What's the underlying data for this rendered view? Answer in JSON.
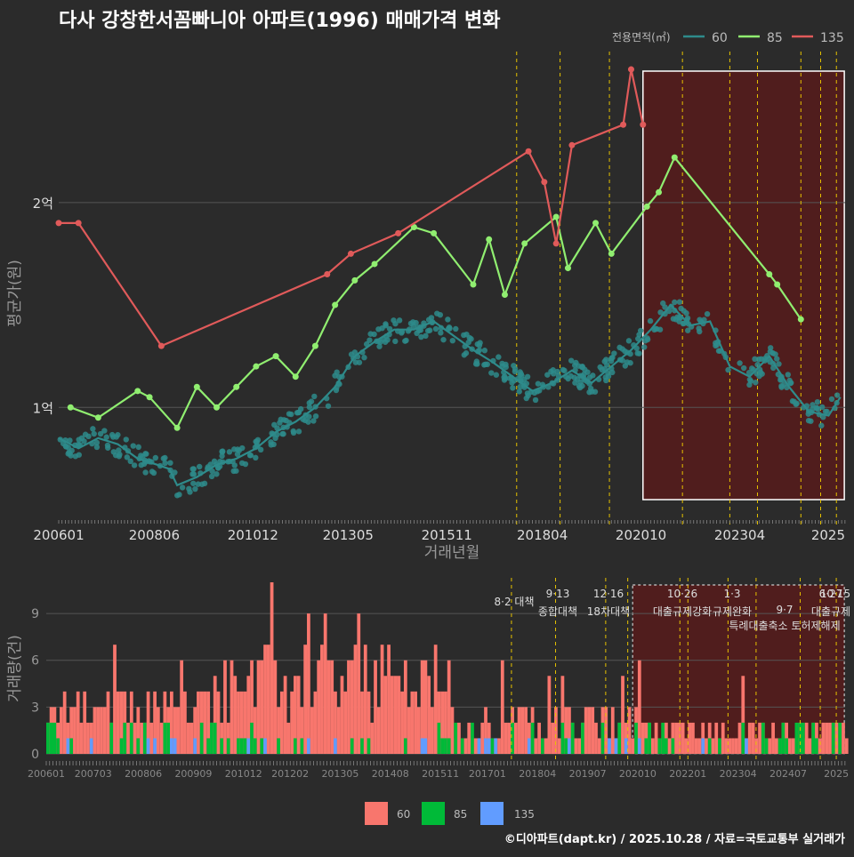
{
  "title": "다사 강창한서꼼빠니아 아파트(1996) 매매가격 변화",
  "source": "©디아파트(dapt.kr) / 2025.10.28 / 자료=국토교통부 실거래가",
  "colors": {
    "bg": "#2b2b2b",
    "s60": "#2e8b8b",
    "s85": "#90ee70",
    "s135": "#e05a5a",
    "b60": "#f8766d",
    "b85": "#00ba38",
    "b135": "#619cff",
    "highlight": "#5a1a1a",
    "policy": "#e6c200"
  },
  "chart_data": [
    {
      "type": "line",
      "title": "다사 강창한서꼼빠니아 아파트(1996) 매매가격 변화",
      "xlabel": "거래년월",
      "ylabel": "평균가(원)",
      "x_ticks": [
        "200601",
        "200806",
        "201012",
        "201305",
        "201511",
        "201804",
        "202010",
        "202304",
        "2025"
      ],
      "y_ticks": [
        {
          "label": "1억",
          "value": 1.0
        },
        {
          "label": "2억",
          "value": 2.0
        }
      ],
      "ylim": [
        0.45,
        2.75
      ],
      "legend_title": "전용면적(㎡)",
      "series": [
        {
          "name": "60",
          "points": [
            [
              2006.0,
              0.85
            ],
            [
              2006.5,
              0.8
            ],
            [
              2007.0,
              0.85
            ],
            [
              2007.5,
              0.82
            ],
            [
              2008.0,
              0.75
            ],
            [
              2008.5,
              0.72
            ],
            [
              2008.8,
              0.7
            ],
            [
              2009.0,
              0.62
            ],
            [
              2009.5,
              0.66
            ],
            [
              2010.0,
              0.72
            ],
            [
              2010.5,
              0.75
            ],
            [
              2011.0,
              0.8
            ],
            [
              2011.5,
              0.88
            ],
            [
              2012.0,
              0.93
            ],
            [
              2012.5,
              1.0
            ],
            [
              2013.0,
              1.1
            ],
            [
              2013.5,
              1.25
            ],
            [
              2014.0,
              1.32
            ],
            [
              2014.5,
              1.38
            ],
            [
              2015.0,
              1.38
            ],
            [
              2015.5,
              1.42
            ],
            [
              2016.0,
              1.35
            ],
            [
              2016.5,
              1.28
            ],
            [
              2017.0,
              1.22
            ],
            [
              2017.5,
              1.15
            ],
            [
              2018.0,
              1.08
            ],
            [
              2018.5,
              1.12
            ],
            [
              2019.0,
              1.18
            ],
            [
              2019.5,
              1.12
            ],
            [
              2020.0,
              1.2
            ],
            [
              2020.5,
              1.28
            ],
            [
              2021.0,
              1.38
            ],
            [
              2021.5,
              1.5
            ],
            [
              2022.0,
              1.4
            ],
            [
              2022.5,
              1.42
            ],
            [
              2023.0,
              1.2
            ],
            [
              2023.5,
              1.15
            ],
            [
              2024.0,
              1.25
            ],
            [
              2024.5,
              1.1
            ],
            [
              2025.0,
              0.98
            ],
            [
              2025.5,
              0.96
            ],
            [
              2025.8,
              1.05
            ]
          ]
        },
        {
          "name": "85",
          "points": [
            [
              2006.3,
              1.0
            ],
            [
              2007.0,
              0.95
            ],
            [
              2008.0,
              1.08
            ],
            [
              2008.3,
              1.05
            ],
            [
              2009.0,
              0.9
            ],
            [
              2009.5,
              1.1
            ],
            [
              2010.0,
              1.0
            ],
            [
              2010.5,
              1.1
            ],
            [
              2011.0,
              1.2
            ],
            [
              2011.5,
              1.25
            ],
            [
              2012.0,
              1.15
            ],
            [
              2012.5,
              1.3
            ],
            [
              2013.0,
              1.5
            ],
            [
              2013.5,
              1.62
            ],
            [
              2014.0,
              1.7
            ],
            [
              2015.0,
              1.88
            ],
            [
              2015.5,
              1.85
            ],
            [
              2016.5,
              1.6
            ],
            [
              2016.9,
              1.82
            ],
            [
              2017.3,
              1.55
            ],
            [
              2017.8,
              1.8
            ],
            [
              2018.6,
              1.93
            ],
            [
              2018.9,
              1.68
            ],
            [
              2019.6,
              1.9
            ],
            [
              2020.0,
              1.75
            ],
            [
              2020.9,
              1.98
            ],
            [
              2021.2,
              2.05
            ],
            [
              2021.6,
              2.22
            ],
            [
              2024.0,
              1.65
            ],
            [
              2024.2,
              1.6
            ],
            [
              2024.8,
              1.43
            ]
          ]
        },
        {
          "name": "135",
          "points": [
            [
              2006.0,
              1.9
            ],
            [
              2006.5,
              1.9
            ],
            [
              2008.6,
              1.3
            ],
            [
              2012.8,
              1.65
            ],
            [
              2013.4,
              1.75
            ],
            [
              2014.6,
              1.85
            ],
            [
              2017.9,
              2.25
            ],
            [
              2018.3,
              2.1
            ],
            [
              2018.6,
              1.8
            ],
            [
              2019.0,
              2.28
            ],
            [
              2020.3,
              2.38
            ],
            [
              2020.5,
              2.65
            ],
            [
              2020.8,
              2.38
            ]
          ]
        }
      ],
      "highlight_range": [
        2020.8,
        2025.9
      ],
      "policy_lines": [
        2017.6,
        2018.7,
        2019.95,
        2021.8,
        2023.0,
        2023.7,
        2024.8,
        2025.3,
        2025.7
      ]
    },
    {
      "type": "bar",
      "ylabel": "거래량(건)",
      "x_ticks": [
        "200601",
        "200703",
        "200806",
        "200909",
        "201012",
        "201202",
        "201305",
        "201408",
        "201511",
        "201701",
        "201804",
        "201907",
        "202010",
        "202201",
        "202304",
        "202407",
        "2025"
      ],
      "y_ticks": [
        0,
        3,
        6,
        9
      ],
      "ylim": [
        0,
        11
      ],
      "legend": [
        "60",
        "85",
        "135"
      ],
      "policy_labels": [
        {
          "date": "8·2 대책",
          "line2": ""
        },
        {
          "date": "9·13",
          "line2": "종합대책"
        },
        {
          "date": "12·16",
          "line2": "18차대책"
        },
        {
          "date": "10·26",
          "line2": "대출규제강화"
        },
        {
          "date": "1·3",
          "line2": "규제완화"
        },
        {
          "date": "9·7",
          "line2": "특례대출축소 토허제해제"
        },
        {
          "date": "6·27",
          "line2": "대출규제"
        },
        {
          "date": "10·15",
          "line2": ""
        }
      ]
    }
  ]
}
